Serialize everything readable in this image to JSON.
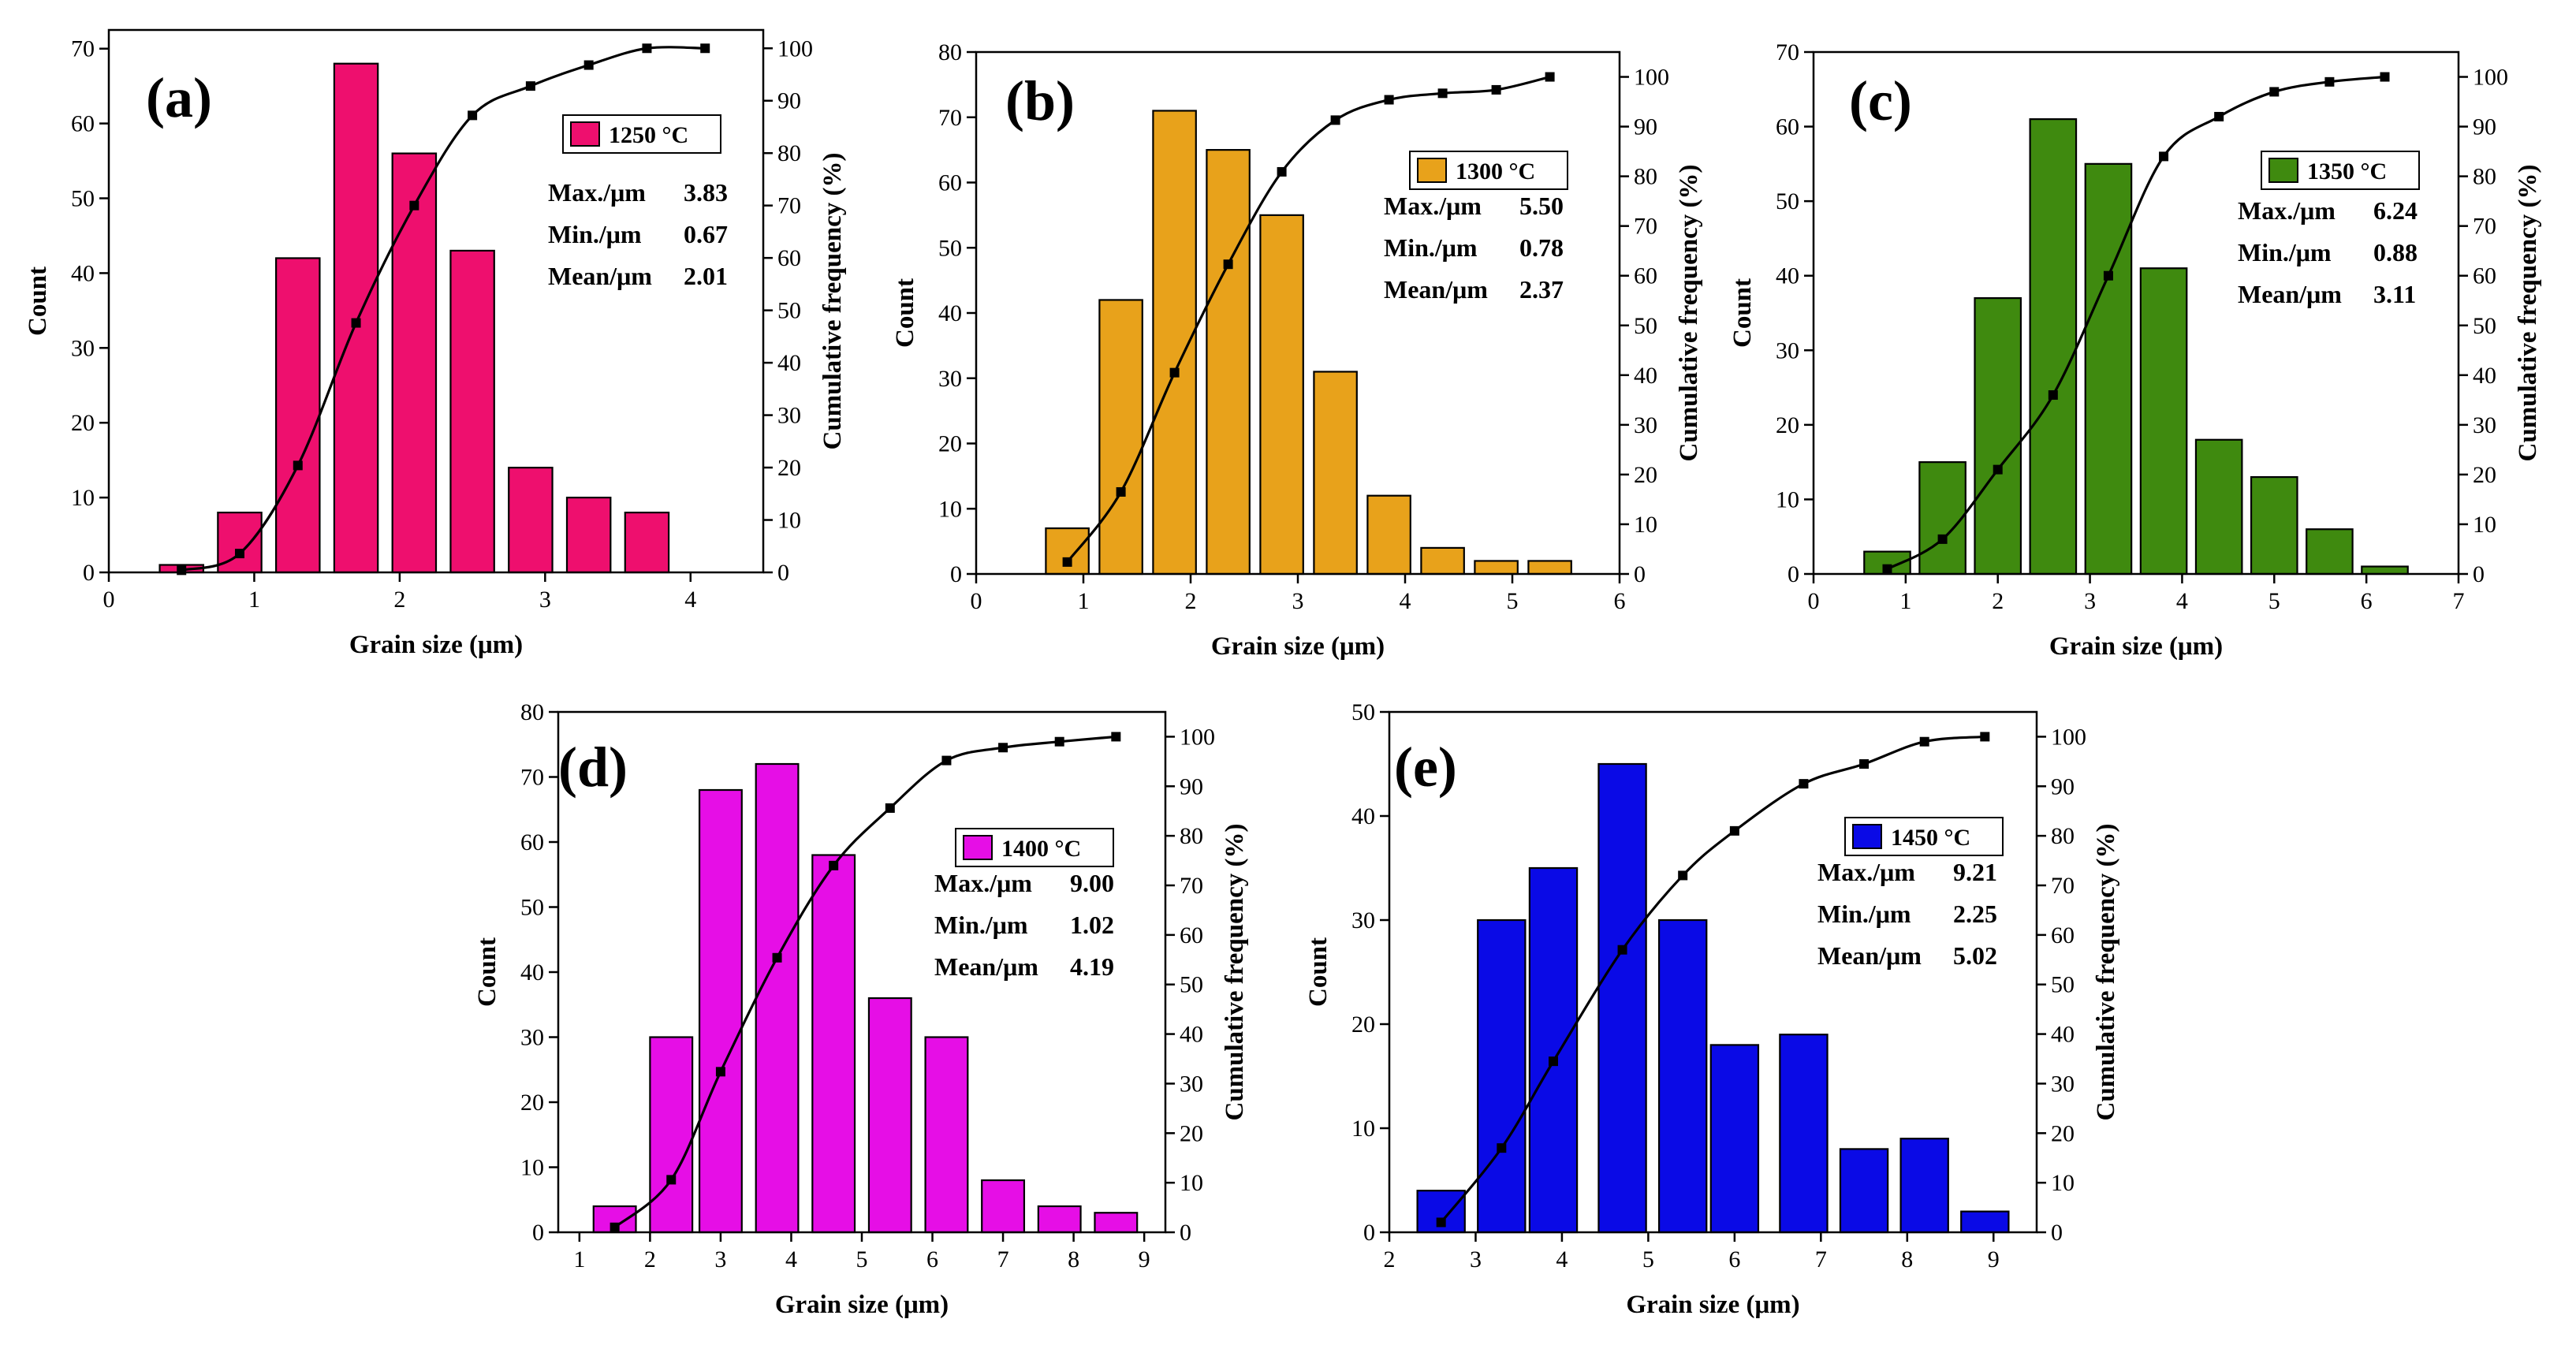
{
  "figure": {
    "description_free": true
  },
  "chart_data": [
    {
      "type": "bar",
      "panel": "(a)",
      "legend": "1250 °C",
      "color": "#ee0f6e",
      "xlabel": "Grain size (μm)",
      "ylabel": "Count",
      "y2label": "Cumulative frequency (%)",
      "xlim": [
        0,
        4.5
      ],
      "xticks": [
        0,
        1,
        2,
        3,
        4
      ],
      "ylim": [
        0,
        72.5
      ],
      "yticks": [
        0,
        10,
        20,
        30,
        40,
        50,
        60,
        70
      ],
      "y2lim": [
        0,
        103.5
      ],
      "y2ticks": [
        0,
        10,
        20,
        30,
        40,
        50,
        60,
        70,
        80,
        90,
        100
      ],
      "bin_width": 0.3,
      "bins": [
        0.5,
        0.9,
        1.3,
        1.7,
        2.1,
        2.5,
        2.9,
        3.3,
        3.7
      ],
      "counts": [
        1,
        8,
        42,
        68,
        56,
        43,
        14,
        10,
        8
      ],
      "cumulative_x": [
        0.5,
        0.9,
        1.3,
        1.7,
        2.1,
        2.5,
        2.9,
        3.3,
        3.7,
        4.1
      ],
      "cumulative": [
        0.4,
        3.6,
        20.4,
        47.6,
        70,
        87.2,
        92.8,
        96.8,
        100,
        100
      ],
      "stats": [
        {
          "label": "Max./μm",
          "value": "3.83"
        },
        {
          "label": "Min./μm",
          "value": "0.67"
        },
        {
          "label": "Mean/μm",
          "value": "2.01"
        }
      ]
    },
    {
      "type": "bar",
      "panel": "(b)",
      "legend": "1300 °C",
      "color": "#e8a21b",
      "xlabel": "Grain size (μm)",
      "ylabel": "Count",
      "y2label": "Cumulative frequency (%)",
      "xlim": [
        0,
        6
      ],
      "xticks": [
        0,
        1,
        2,
        3,
        4,
        5,
        6
      ],
      "ylim": [
        0,
        80
      ],
      "yticks": [
        0,
        10,
        20,
        30,
        40,
        50,
        60,
        70,
        80
      ],
      "y2lim": [
        0,
        105
      ],
      "y2ticks": [
        0,
        10,
        20,
        30,
        40,
        50,
        60,
        70,
        80,
        90,
        100
      ],
      "bin_width": 0.4,
      "bins": [
        0.85,
        1.35,
        1.85,
        2.35,
        2.85,
        3.35,
        3.85,
        4.35,
        4.85,
        5.35
      ],
      "counts": [
        7,
        42,
        71,
        65,
        55,
        31,
        12,
        4,
        2,
        2
      ],
      "cumulative_x": [
        0.85,
        1.35,
        1.85,
        2.35,
        2.85,
        3.35,
        3.85,
        4.35,
        4.85,
        5.35
      ],
      "cumulative": [
        2.4,
        16.5,
        40.5,
        62.3,
        80.9,
        91.3,
        95.4,
        96.7,
        97.4,
        100
      ],
      "stats": [
        {
          "label": "Max./μm",
          "value": "5.50"
        },
        {
          "label": "Min./μm",
          "value": "0.78"
        },
        {
          "label": "Mean/μm",
          "value": "2.37"
        }
      ]
    },
    {
      "type": "bar",
      "panel": "(c)",
      "legend": "1350 °C",
      "color": "#3f8a0f",
      "xlabel": "Grain size (μm)",
      "ylabel": "Count",
      "y2label": "Cumulative frequency (%)",
      "xlim": [
        0,
        7
      ],
      "xticks": [
        0,
        1,
        2,
        3,
        4,
        5,
        6,
        7
      ],
      "ylim": [
        0,
        70
      ],
      "yticks": [
        0,
        10,
        20,
        30,
        40,
        50,
        60,
        70
      ],
      "y2lim": [
        0,
        105
      ],
      "y2ticks": [
        0,
        10,
        20,
        30,
        40,
        50,
        60,
        70,
        80,
        90,
        100
      ],
      "bin_width": 0.5,
      "bins": [
        0.8,
        1.4,
        2.0,
        2.6,
        3.2,
        3.8,
        4.4,
        5.0,
        5.6,
        6.2
      ],
      "counts": [
        3,
        15,
        37,
        61,
        55,
        41,
        18,
        13,
        6,
        1
      ],
      "cumulative_x": [
        0.8,
        1.4,
        2.0,
        2.6,
        3.2,
        3.8,
        4.4,
        5.0,
        5.6,
        6.2
      ],
      "cumulative": [
        1,
        7,
        21,
        36,
        60,
        84,
        92,
        97,
        99,
        100
      ],
      "stats": [
        {
          "label": "Max./μm",
          "value": "6.24"
        },
        {
          "label": "Min./μm",
          "value": "0.88"
        },
        {
          "label": "Mean/μm",
          "value": "3.11"
        }
      ]
    },
    {
      "type": "bar",
      "panel": "(d)",
      "legend": "1400 °C",
      "color": "#e60ee6",
      "xlabel": "Grain size (μm)",
      "ylabel": "Count",
      "y2label": "Cumulative frequency (%)",
      "xlim": [
        0.7,
        9.3
      ],
      "xticks": [
        1,
        2,
        3,
        4,
        5,
        6,
        7,
        8,
        9
      ],
      "ylim": [
        0,
        80
      ],
      "yticks": [
        0,
        10,
        20,
        30,
        40,
        50,
        60,
        70,
        80
      ],
      "y2lim": [
        0,
        105
      ],
      "y2ticks": [
        0,
        10,
        20,
        30,
        40,
        50,
        60,
        70,
        80,
        90,
        100
      ],
      "bin_width": 0.6,
      "bins": [
        1.5,
        2.3,
        3.0,
        3.8,
        4.6,
        5.4,
        6.2,
        7.0,
        7.8,
        8.6
      ],
      "counts": [
        4,
        30,
        68,
        72,
        58,
        36,
        30,
        8,
        4,
        3
      ],
      "cumulative_x": [
        1.5,
        2.3,
        3.0,
        3.8,
        4.6,
        5.4,
        6.2,
        7.0,
        7.8,
        8.6
      ],
      "cumulative": [
        1,
        10.6,
        32.4,
        55.4,
        74,
        85.6,
        95.2,
        97.8,
        99,
        100
      ],
      "stats": [
        {
          "label": "Max./μm",
          "value": "9.00"
        },
        {
          "label": "Min./μm",
          "value": "1.02"
        },
        {
          "label": "Mean/μm",
          "value": "4.19"
        }
      ]
    },
    {
      "type": "bar",
      "panel": "(e)",
      "legend": "1450 °C",
      "color": "#0a0ae6",
      "xlabel": "Grain size (μm)",
      "ylabel": "Count",
      "y2label": "Cumulative frequency (%)",
      "xlim": [
        2,
        9.5
      ],
      "xticks": [
        2,
        3,
        4,
        5,
        6,
        7,
        8,
        9
      ],
      "ylim": [
        0,
        50
      ],
      "yticks": [
        0,
        10,
        20,
        30,
        40,
        50
      ],
      "y2lim": [
        0,
        105
      ],
      "y2ticks": [
        0,
        10,
        20,
        30,
        40,
        50,
        60,
        70,
        80,
        90,
        100
      ],
      "bin_width": 0.55,
      "bins": [
        2.6,
        3.3,
        3.9,
        4.7,
        5.4,
        6.0,
        6.8,
        7.5,
        8.2,
        8.9
      ],
      "counts": [
        4,
        30,
        35,
        45,
        30,
        18,
        19,
        8,
        9,
        2
      ],
      "cumulative_x": [
        2.6,
        3.3,
        3.9,
        4.7,
        5.4,
        6.0,
        6.8,
        7.5,
        8.2,
        8.9
      ],
      "cumulative": [
        2,
        17,
        34.5,
        57,
        72,
        81,
        90.5,
        94.5,
        99,
        100
      ],
      "stats": [
        {
          "label": "Max./μm",
          "value": "9.21"
        },
        {
          "label": "Min./μm",
          "value": "2.25"
        },
        {
          "label": "Mean/μm",
          "value": "5.02"
        }
      ]
    }
  ]
}
